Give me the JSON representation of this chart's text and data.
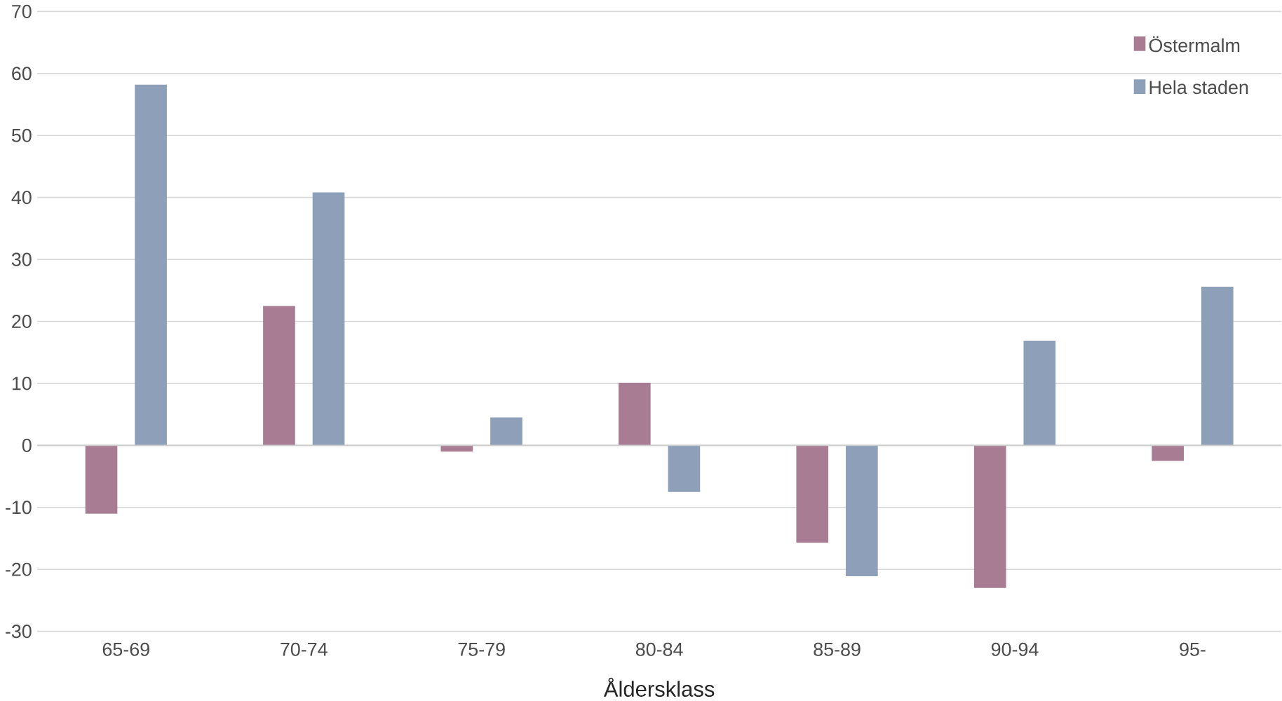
{
  "chart_data": {
    "type": "bar",
    "xlabel": "Åldersklass",
    "categories": [
      "65-69",
      "70-74",
      "75-79",
      "80-84",
      "85-89",
      "90-94",
      "95-"
    ],
    "series": [
      {
        "name": "Östermalm",
        "color": "#a87c93",
        "values": [
          -11,
          22.5,
          -1,
          10.1,
          -15.7,
          -23,
          -2.5
        ]
      },
      {
        "name": "Hela staden",
        "color": "#8e9fba",
        "values": [
          58.2,
          40.8,
          4.5,
          -7.5,
          -21.1,
          16.9,
          25.6
        ]
      }
    ],
    "ylim": [
      -30,
      70
    ],
    "yticks": [
      -30,
      -20,
      -10,
      0,
      10,
      20,
      30,
      40,
      50,
      60,
      70
    ],
    "grid": "y",
    "legend": "top right"
  }
}
